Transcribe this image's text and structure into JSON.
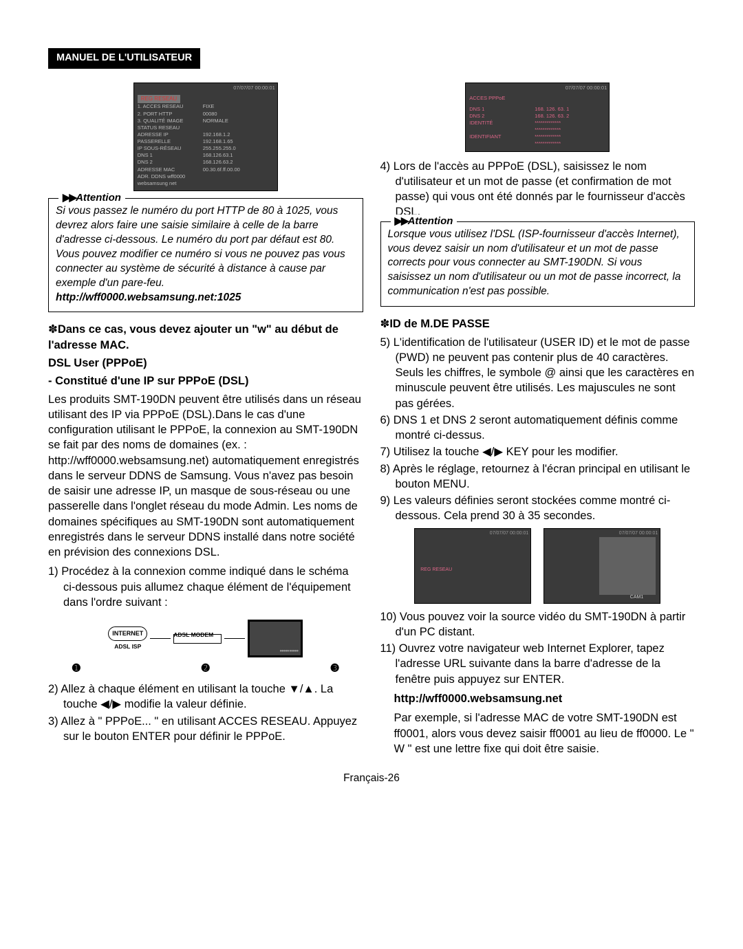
{
  "header_badge": "MANUEL DE L'UTILISATEUR",
  "page_number": "Français-26",
  "left": {
    "shot1": {
      "ts": "07/07/07  00:00:01",
      "badge": "REG RESEAU",
      "rows": [
        [
          "1. ACCES RESEAU",
          "FIXE"
        ],
        [
          "2. PORT HTTP",
          "00080"
        ],
        [
          "3. QUALITÉ IMAGE",
          "NORMALE"
        ],
        [
          "STATUS RESEAU",
          ""
        ],
        [
          "    ADRESSE IP",
          "192.168.1.2"
        ],
        [
          "    PASSERELLE",
          "192.168.1.65"
        ],
        [
          "    IP SOUS-RÉSEAU",
          "255.255.255.0"
        ],
        [
          "    DNS 1",
          "168.126.63.1"
        ],
        [
          "    DNS 2",
          "168.126.63.2"
        ],
        [
          "    ADRESSE MAC",
          "00.30.6f.ff.00.00"
        ],
        [
          "    ADR. DDNS  wff0000 websamsung net",
          ""
        ]
      ]
    },
    "att1_label": "Attention",
    "att1_body": "Si vous passez le numéro du port HTTP de 80 à 1025, vous devrez alors faire une saisie similaire à celle de la barre d'adresse ci-dessous. Le numéro du port par défaut est 80. Vous pouvez modifier ce numéro si vous ne pouvez pas vous connecter au système de sécurité à distance à cause par exemple d'un pare-feu.",
    "att1_url": "http://wff0000.websamsung.net:1025",
    "h1": "Dans ce cas, vous devez ajouter un \"w\" au début de l'adresse MAC.",
    "h2": "DSL User (PPPoE)",
    "h3": "- Constitué d'une IP sur PPPoE (DSL)",
    "para1": "Les produits SMT-190DN peuvent être utilisés dans un réseau utilisant des IP via PPPoE (DSL).Dans le cas d'une configuration utilisant le PPPoE, la connexion au SMT-190DN se fait par des noms de domaines (ex. : http://wff0000.websamsung.net) automatiquement enregistrés dans le serveur DDNS de Samsung. Vous n'avez pas besoin de saisir une adresse IP, un masque de sous-réseau ou une passerelle dans l'onglet réseau du mode Admin. Les noms de domaines spécifiques au SMT-190DN sont automatiquement enregistrés dans le serveur DDNS installé dans notre société en prévision des connexions DSL.",
    "n1": "1)  Procédez à la connexion comme indiqué dans le schéma ci-dessous puis allumez chaque élément de l'équipement dans l'ordre suivant :",
    "diagram": {
      "internet": "INTERNET",
      "modem": "ADSL MODEM",
      "isp": "ADSL ISP",
      "c1": "➊",
      "c2": "➋",
      "c3": "➌"
    },
    "n2a": "2) Allez à chaque élément en utilisant la touche ",
    "n2b": ". La touche ",
    "n2c": " modifie la valeur définie.",
    "n3": "3) Allez à \" PPPoE... \" en utilisant ACCES RESEAU. Appuyez sur le bouton ENTER pour définir le PPPoE."
  },
  "right": {
    "shot2": {
      "ts": "07/07/07  00:00:01",
      "title": "ACCES PPPoE",
      "rows": [
        [
          "DNS 1",
          "168. 126. 63. 1"
        ],
        [
          "DNS 2",
          "168. 126. 63. 2"
        ],
        [
          "IDENTITÉ",
          "*************"
        ],
        [
          "",
          "*************"
        ],
        [
          "IDENTIFIANT",
          "*************"
        ],
        [
          "",
          "*************"
        ]
      ]
    },
    "n4": "4)  Lors de l'accès au PPPoE (DSL), saisissez le nom d'utilisateur et un mot de passe (et confirmation de mot passe) qui vous ont été donnés par le fournisseur d'accès DSL.",
    "att2_label": "Attention",
    "att2_body": "Lorsque vous utilisez l'DSL (ISP-fournisseur d'accès Internet), vous devez saisir un nom d'utilisateur et un mot de passe corrects pour vous connecter au SMT-190DN. Si vous saisissez un nom d'utilisateur ou un mot de passe incorrect, la communication n'est pas possible.",
    "h4": "ID de M.DE PASSE",
    "n5": "5)  L'identification de l'utilisateur (USER ID) et le mot de passe (PWD) ne peuvent pas contenir plus de 40 caractères. Seuls les chiffres, le symbole @ ainsi que les caractères en minuscule peuvent être utilisés. Les majuscules ne sont pas gérées.",
    "n6": "6)  DNS 1 et DNS 2 seront automatiquement définis comme montré ci-dessus.",
    "n7a": "7)  Utilisez la touche ",
    "n7b": " KEY pour les modifier.",
    "n8": "8)  Après le réglage, retournez à l'écran principal en utilisant le bouton MENU.",
    "n9": "9) Les valeurs définies seront stockées comme montré ci-dessous. Cela prend 30 à 35 secondes.",
    "mini1": {
      "ts": "07/07/07  00:00:01",
      "reg": "REG RESEAU"
    },
    "mini2": {
      "ts": "07/07/07  00:00:01",
      "cam": "CAM1"
    },
    "n10": "10)  Vous pouvez voir la source vidéo du SMT-190DN à partir d'un PC distant.",
    "n11": "11) Ouvrez votre navigateur web Internet Explorer, tapez l'adresse URL suivante dans la barre d'adresse de la fenêtre puis appuyez sur ENTER.",
    "url": "http://wff0000.websamsung.net",
    "para2": "Par exemple, si l'adresse MAC de votre SMT-190DN est ff0001, alors vous devez saisir ff0001 au lieu de ff0000. Le \" W \" est une lettre fixe qui doit être saisie."
  }
}
